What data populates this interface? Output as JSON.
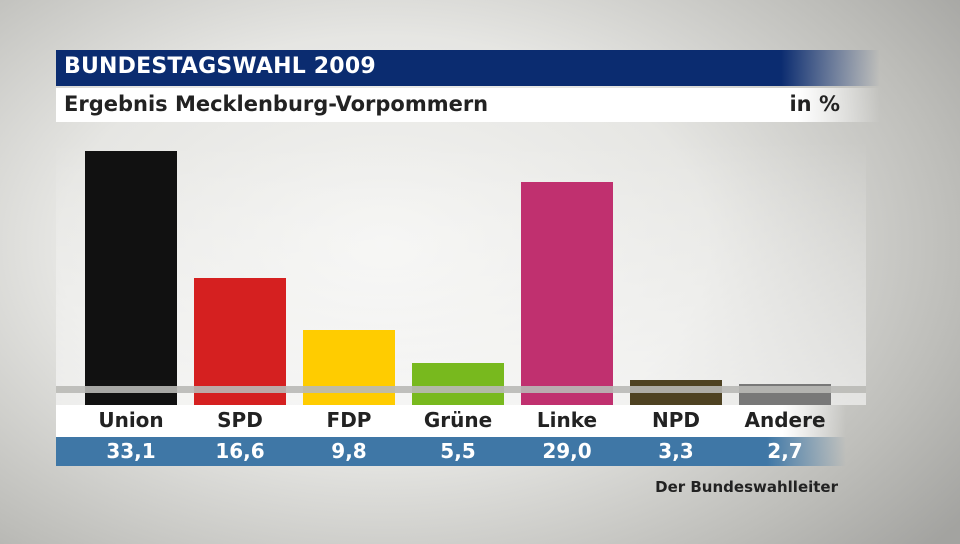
{
  "header": {
    "title": "BUNDESTAGSWAHL 2009",
    "subtitle": "Ergebnis Mecklenburg-Vorpommern",
    "unit": "in %"
  },
  "source": "Der Bundeswahlleiter",
  "chart_data": {
    "type": "bar",
    "title": "BUNDESTAGSWAHL 2009",
    "subtitle": "Ergebnis Mecklenburg-Vorpommern",
    "ylabel": "in %",
    "xlabel": "",
    "ylim": [
      0,
      33.1
    ],
    "categories": [
      "Union",
      "SPD",
      "FDP",
      "Grüne",
      "Linke",
      "NPD",
      "Andere"
    ],
    "values": [
      33.1,
      16.6,
      9.8,
      5.5,
      29.0,
      3.3,
      2.7
    ],
    "value_labels": [
      "33,1",
      "16,6",
      "9,8",
      "5,5",
      "29,0",
      "3,3",
      "2,7"
    ],
    "colors": [
      "#111111",
      "#d52020",
      "#ffcc00",
      "#78b91e",
      "#c0306f",
      "#4e4222",
      "#787878"
    ]
  }
}
